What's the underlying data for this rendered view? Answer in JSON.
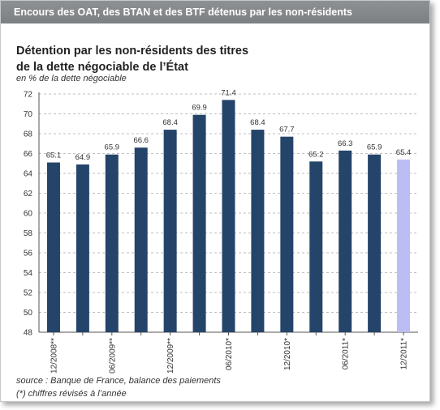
{
  "banner": {
    "text": "Encours des OAT, des BTAN et des BTF détenus par les non-résidents"
  },
  "chart_data": {
    "type": "bar",
    "title_line1": "Détention par les non-résidents des titres",
    "title_line2": "de la dette négociable de l’État",
    "subtitle": "en % de la dette négociable",
    "source": "source : Banque de France, balance des paiements",
    "note": "(*) chiffres révisés à l’année",
    "ylim": [
      48,
      72
    ],
    "yticks": [
      48,
      50,
      52,
      54,
      56,
      58,
      60,
      62,
      64,
      66,
      68,
      70,
      72
    ],
    "grid": true,
    "values": [
      65.1,
      64.9,
      65.9,
      66.6,
      68.4,
      69.9,
      71.4,
      68.4,
      67.7,
      65.2,
      66.3,
      65.9,
      65.4
    ],
    "data_labels": [
      "65.1",
      "64.9",
      "65.9",
      "66.6",
      "68.4",
      "69.9",
      "71.4",
      "68.4",
      "67.7",
      "65.2",
      "66.3",
      "65.9",
      "65.4"
    ],
    "category_labels": [
      "12/2008**",
      "",
      "06/2009**",
      "",
      "12/2009**",
      "",
      "06/2010*",
      "",
      "12/2010*",
      "",
      "06/2011*",
      "",
      "12/2011*"
    ],
    "colors": {
      "bar": "#25446a",
      "highlight": "#bdbdf5",
      "grid": "#bfbfbf",
      "axis": "#555555"
    },
    "highlight_index": 12
  }
}
